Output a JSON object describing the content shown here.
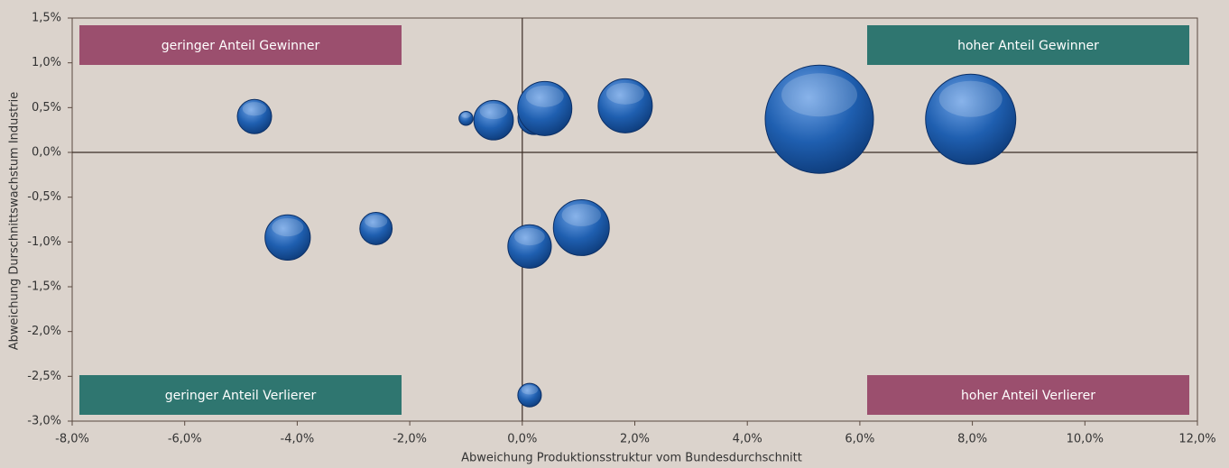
{
  "chart_data": {
    "type": "bubble",
    "x_label": "Abweichung Produktionsstruktur vom Bundesdurchschnitt",
    "y_label": "Abweichung Durschnittswachstum Industrie",
    "x": [
      -4.76,
      -1.0,
      -0.51,
      0.21,
      0.4,
      1.83,
      5.28,
      7.97,
      -4.17,
      -2.6,
      0.13,
      1.05,
      0.13
    ],
    "series": [
      {
        "color": "#1f5fb0",
        "values": [
          0.4,
          0.38,
          0.36,
          0.38,
          0.49,
          0.52,
          0.37,
          0.37,
          -0.95,
          -0.85,
          -1.05,
          -0.84,
          -2.71
        ],
        "sizes": [
          3.6,
          0.6,
          4.8,
          3.2,
          9,
          9,
          36,
          25,
          6.3,
          3.2,
          5.8,
          9.6,
          1.7
        ]
      }
    ],
    "xlim": [
      -8,
      12
    ],
    "ylim": [
      -3,
      1.5
    ],
    "xticks": [
      {
        "value": -8,
        "label": "-8,0%"
      },
      {
        "value": -6,
        "label": "-6,0%"
      },
      {
        "value": -4,
        "label": "-4,0%"
      },
      {
        "value": -2,
        "label": "-2,0%"
      },
      {
        "value": 0,
        "label": "0,0%"
      },
      {
        "value": 2,
        "label": "2,0%"
      },
      {
        "value": 4,
        "label": "4,0%"
      },
      {
        "value": 6,
        "label": "6,0%"
      },
      {
        "value": 8,
        "label": "8,0%"
      },
      {
        "value": 10,
        "label": "10,0%"
      },
      {
        "value": 12,
        "label": "12,0%"
      }
    ],
    "yticks": [
      {
        "value": -3,
        "label": "-3,0%"
      },
      {
        "value": -2.5,
        "label": "-2,5%"
      },
      {
        "value": -2,
        "label": "-2,0%"
      },
      {
        "value": -1.5,
        "label": "-1,5%"
      },
      {
        "value": -1,
        "label": "-1,0%"
      },
      {
        "value": -0.5,
        "label": "-0,5%"
      },
      {
        "value": 0,
        "label": "0,0%"
      },
      {
        "value": 0.5,
        "label": "0,5%"
      },
      {
        "value": 1,
        "label": "1,0%"
      },
      {
        "value": 1.5,
        "label": "1,5%"
      }
    ],
    "annotations": [
      {
        "text": "geringer Anteil Gewinner",
        "color": "#9b4f6e",
        "corner": "top-left"
      },
      {
        "text": "hoher Anteil Gewinner",
        "color": "#2f7670",
        "corner": "top-right"
      },
      {
        "text": "geringer Anteil Verlierer",
        "color": "#2f7670",
        "corner": "bottom-left"
      },
      {
        "text": "hoher Anteil Verlierer",
        "color": "#9b4f6e",
        "corner": "bottom-right"
      }
    ]
  }
}
